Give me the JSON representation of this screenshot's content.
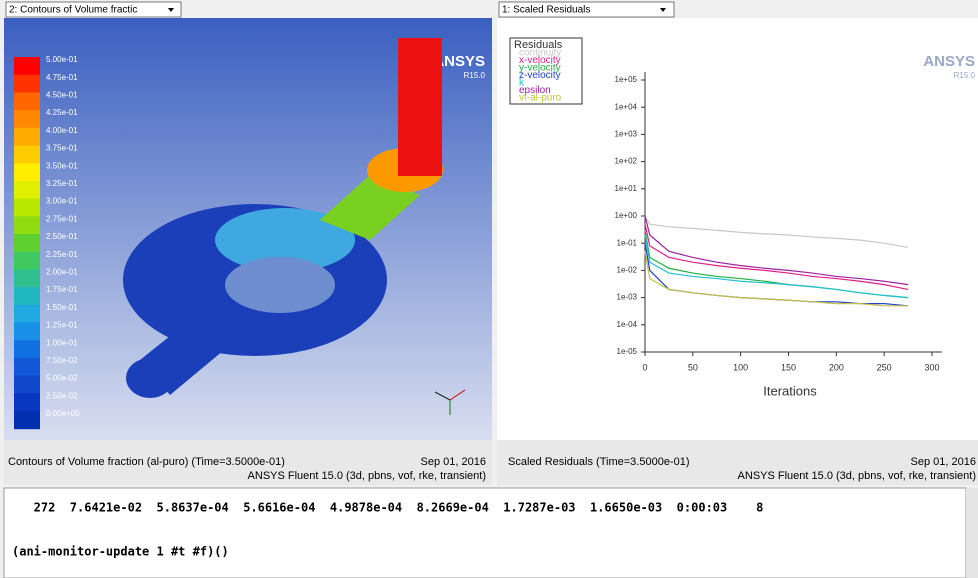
{
  "left_panel": {
    "dropdown": "2: Contours of Volume fractic",
    "logo": "ANSYS",
    "version": "R15.0",
    "colorbar": {
      "labels": [
        "5.00e-01",
        "4.75e-01",
        "4.50e-01",
        "4.25e-01",
        "4.00e-01",
        "3.75e-01",
        "3.50e-01",
        "3.25e-01",
        "3.00e-01",
        "2.75e-01",
        "2.50e-01",
        "2.25e-01",
        "2.00e-01",
        "1.75e-01",
        "1.50e-01",
        "1.25e-01",
        "1.00e-01",
        "7.50e-02",
        "5.00e-02",
        "2.50e-02",
        "0.00e+00"
      ],
      "colors": [
        "#ff0000",
        "#ff3300",
        "#ff6600",
        "#ff8800",
        "#ffaa00",
        "#ffcc00",
        "#ffee00",
        "#e0f000",
        "#b8e800",
        "#90dc10",
        "#60d030",
        "#40c860",
        "#30c090",
        "#20b8c0",
        "#20a8e0",
        "#1890e8",
        "#1070e0",
        "#1058d8",
        "#1048cc",
        "#0838c0",
        "#0030b0"
      ]
    },
    "footer": {
      "caption": "Contours of Volume fraction (al-puro)   (Time=3.5000e-01)",
      "date": "Sep 01, 2016",
      "solver": "ANSYS Fluent 15.0 (3d, pbns, vof, rke, transient)"
    }
  },
  "right_panel": {
    "dropdown": "1: Scaled Residuals",
    "logo": "ANSYS",
    "version": "R15.0",
    "footer": {
      "caption": "Scaled Residuals  (Time=3.5000e-01)",
      "date": "Sep 01, 2016",
      "solver": "ANSYS Fluent 15.0 (3d, pbns, vof, rke, transient)"
    }
  },
  "chart_data": {
    "type": "line",
    "legend_title": "Residuals",
    "xlabel": "Iterations",
    "log_y": true,
    "x": [
      0,
      5,
      25,
      50,
      75,
      100,
      125,
      150,
      175,
      200,
      225,
      250,
      275
    ],
    "series": [
      {
        "name": "continuity",
        "color": "#c8c8c8",
        "values": [
          1,
          0.5,
          0.4,
          0.35,
          0.3,
          0.25,
          0.22,
          0.2,
          0.17,
          0.15,
          0.13,
          0.1,
          0.07
        ]
      },
      {
        "name": "x-velocity",
        "color": "#e0208a",
        "values": [
          0.5,
          0.08,
          0.03,
          0.02,
          0.015,
          0.012,
          0.01,
          0.008,
          0.006,
          0.005,
          0.004,
          0.003,
          0.002
        ]
      },
      {
        "name": "y-velocity",
        "color": "#20b040",
        "values": [
          0.3,
          0.03,
          0.012,
          0.008,
          0.006,
          0.005,
          0.004,
          0.003,
          0.0025,
          0.002,
          0.0015,
          0.0012,
          0.001
        ]
      },
      {
        "name": "z-velocity",
        "color": "#2040d0",
        "values": [
          0.1,
          0.01,
          0.002,
          0.0015,
          0.0012,
          0.001,
          0.0009,
          0.0008,
          0.0007,
          0.0007,
          0.0006,
          0.0006,
          0.0005
        ]
      },
      {
        "name": "k",
        "color": "#20c0d0",
        "values": [
          0.2,
          0.02,
          0.008,
          0.006,
          0.005,
          0.004,
          0.0035,
          0.003,
          0.0025,
          0.002,
          0.0015,
          0.0012,
          0.001
        ]
      },
      {
        "name": "epsilon",
        "color": "#a020a0",
        "values": [
          1,
          0.2,
          0.05,
          0.03,
          0.02,
          0.015,
          0.012,
          0.01,
          0.008,
          0.006,
          0.005,
          0.004,
          0.003
        ]
      },
      {
        "name": "vf-al-puro",
        "color": "#c8c040",
        "values": [
          0.05,
          0.005,
          0.002,
          0.0015,
          0.0012,
          0.001,
          0.0009,
          0.0008,
          0.0007,
          0.0006,
          0.0006,
          0.0005,
          0.0005
        ]
      }
    ],
    "xlim": [
      0,
      300
    ],
    "xticks": [
      0,
      50,
      100,
      150,
      200,
      250,
      300
    ],
    "ylim": [
      1e-05,
      100000
    ],
    "yticks": [
      {
        "value": 100000,
        "label": "1e+05"
      },
      {
        "value": 10000,
        "label": "1e+04"
      },
      {
        "value": 1000,
        "label": "1e+03"
      },
      {
        "value": 100,
        "label": "1e+02"
      },
      {
        "value": 10,
        "label": "1e+01"
      },
      {
        "value": 1,
        "label": "1e+00"
      },
      {
        "value": 0.1,
        "label": "1e-01"
      },
      {
        "value": 0.01,
        "label": "1e-02"
      },
      {
        "value": 0.001,
        "label": "1e-03"
      },
      {
        "value": 0.0001,
        "label": "1e-04"
      },
      {
        "value": 1e-05,
        "label": "1e-05"
      }
    ]
  },
  "console": {
    "lines": [
      "   272  7.6421e-02  5.8637e-04  5.6616e-04  4.9878e-04  8.2669e-04  1.7287e-03  1.6650e-03  0:00:03    8",
      "(ani-monitor-update 1 #t #f)()"
    ]
  }
}
